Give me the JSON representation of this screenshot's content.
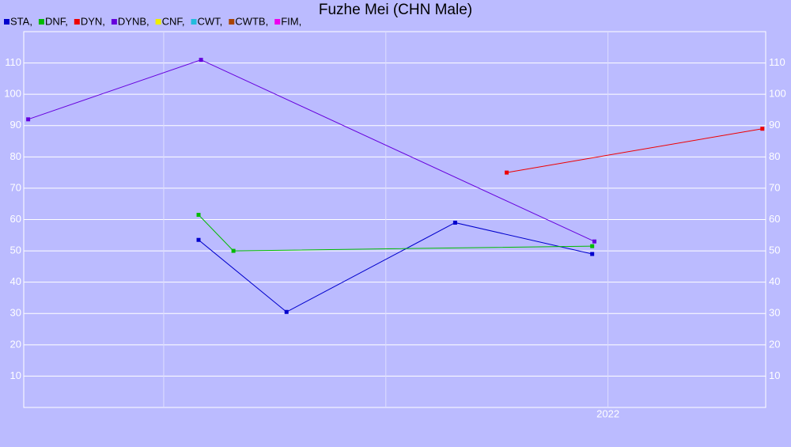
{
  "chart_data": {
    "type": "line",
    "title": "Fuzhe Mei (CHN Male)",
    "xlim": [
      2019.37,
      2022.71
    ],
    "xticks": [
      {
        "value": 2020,
        "label": null
      },
      {
        "value": 2021,
        "label": null
      },
      2022
    ],
    "ylim": [
      0,
      120
    ],
    "yticks": [
      10,
      20,
      30,
      40,
      50,
      60,
      70,
      80,
      90,
      100,
      110
    ],
    "grid": true,
    "series": [
      {
        "name": "STA,",
        "color": "#0000cc",
        "x": [
          2020.157,
          2020.553,
          2021.312,
          2021.929
        ],
        "values": [
          53.5,
          30.5,
          59,
          49
        ]
      },
      {
        "name": "DNF,",
        "color": "#00bb00",
        "x": [
          2020.157,
          2020.314,
          2021.929
        ],
        "values": [
          61.5,
          50,
          51.5
        ]
      },
      {
        "name": "DYN,",
        "color": "#ee0000",
        "x": [
          2021.544,
          2022.695
        ],
        "values": [
          75,
          89
        ]
      },
      {
        "name": "DYNB,",
        "color": "#6600dd",
        "x": [
          2019.39,
          2020.168,
          2021.939
        ],
        "values": [
          92,
          111,
          53
        ]
      },
      {
        "name": "CNF,",
        "color": "#eeee00",
        "x": [],
        "values": []
      },
      {
        "name": "CWT,",
        "color": "#22bbdd",
        "x": [],
        "values": []
      },
      {
        "name": "CWTB,",
        "color": "#aa4400",
        "x": [],
        "values": []
      },
      {
        "name": "FIM,",
        "color": "#ee00ee",
        "x": [],
        "values": []
      }
    ]
  }
}
